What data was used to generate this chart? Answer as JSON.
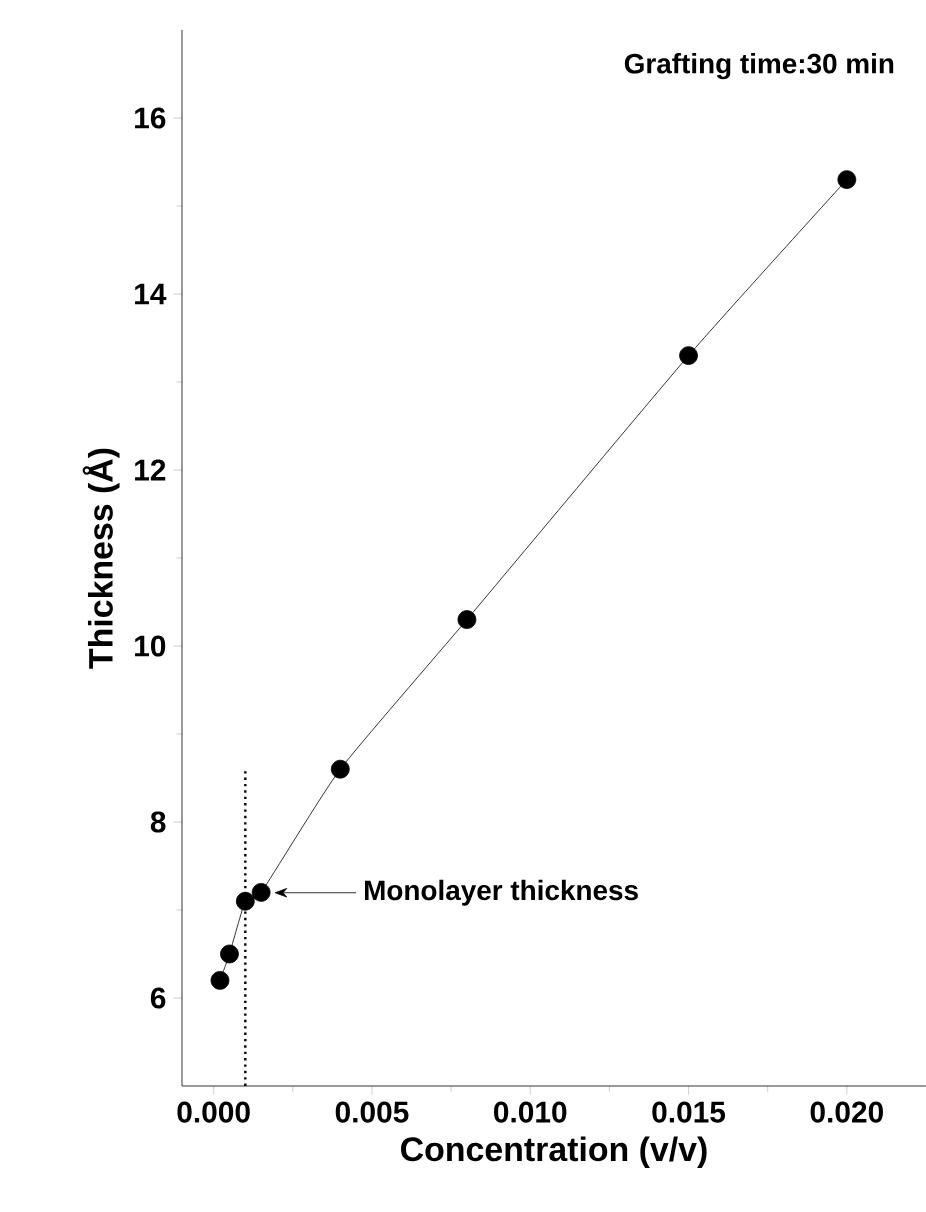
{
  "chart_data": {
    "type": "line",
    "xlabel": "Concentration (v/v)",
    "ylabel": "Thickness (Å)",
    "x": [
      0.0002,
      0.0005,
      0.001,
      0.0015,
      0.004,
      0.008,
      0.015,
      0.02
    ],
    "values": [
      6.2,
      6.5,
      7.1,
      7.2,
      8.6,
      10.3,
      13.3,
      15.3
    ],
    "color": "#000000",
    "marker": "circle",
    "line_style": "solid",
    "xlim": [
      -0.001,
      0.0225
    ],
    "ylim": [
      5,
      17
    ],
    "xticks": [
      {
        "value": 0,
        "label": "0.000"
      },
      {
        "value": 0.005,
        "label": "0.005"
      },
      {
        "value": 0.01,
        "label": "0.010"
      },
      {
        "value": 0.015,
        "label": "0.015"
      },
      {
        "value": 0.02,
        "label": "0.020"
      }
    ],
    "yticks": [
      6,
      8,
      10,
      12,
      14,
      16
    ],
    "grid": false,
    "ref_lines": [
      {
        "axis": "x",
        "value": 0.001,
        "line_style": "dotted"
      }
    ],
    "annotations": [
      "Grafting time:30 min",
      "Monolayer thickness"
    ]
  }
}
